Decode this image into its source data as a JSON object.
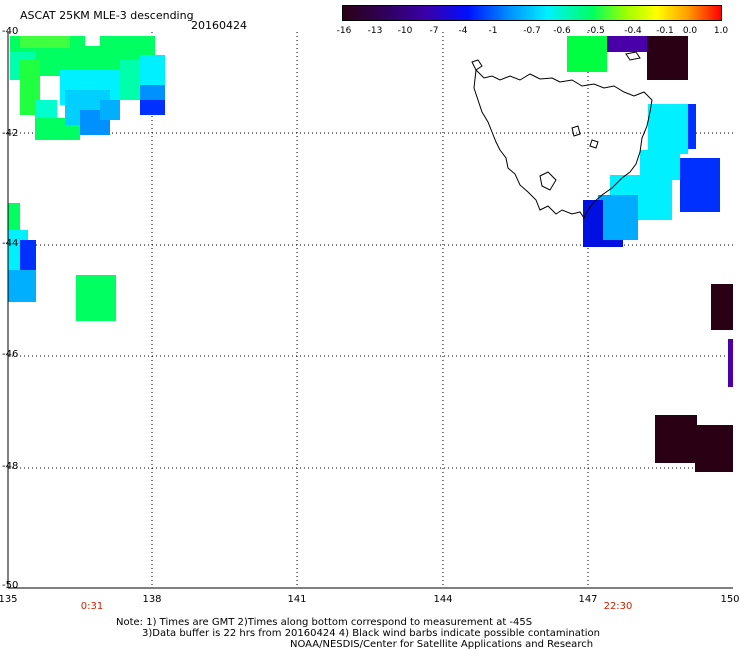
{
  "header": {
    "title": "ASCAT 25KM MLE-3 descending",
    "date": "20160424"
  },
  "colorbar": {
    "ticks": [
      "-16",
      "-13",
      "-10",
      "-7",
      "-4",
      "-1",
      "-0.7",
      "-0.6",
      "-0.5",
      "-0.4",
      "-0.1",
      "0.0",
      "1.0"
    ]
  },
  "axes": {
    "y_labels": [
      "-40",
      "-42",
      "-44",
      "-46",
      "-48",
      "-50"
    ],
    "x_labels": [
      "135",
      "138",
      "141",
      "144",
      "147",
      "150"
    ],
    "time_labels": [
      "0:31",
      "22:30"
    ]
  },
  "notes": {
    "line1": "Note: 1) Times are GMT 2)Times along bottom correspond to measurement at -45S",
    "line2": "3)Data buffer is 22 hrs from 20160424 4) Black wind barbs indicate possible contamination",
    "line3": "NOAA/NESDIS/Center for Satellite Applications and Research"
  },
  "colors": {
    "dark": "#2a0014",
    "purple": "#4a00a8",
    "blue": "#0030ff",
    "lightblue": "#00aaff",
    "cyan": "#00f0ff",
    "green": "#00ff40"
  }
}
